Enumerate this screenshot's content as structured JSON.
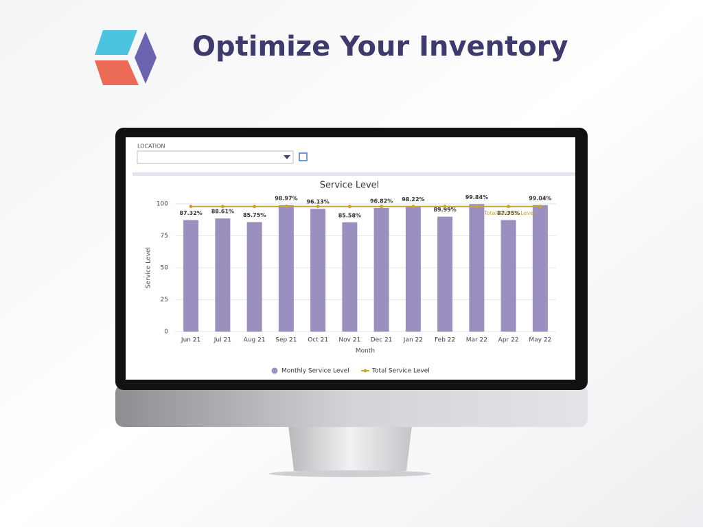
{
  "header": {
    "title": "Optimize Your Inventory"
  },
  "filter": {
    "label": "LOCATION"
  },
  "chart_data": {
    "type": "bar",
    "title": "Service Level",
    "x_label": "Month",
    "y_label": "Service Level",
    "categories": [
      "Jun 21",
      "Jul 21",
      "Aug 21",
      "Sep 21",
      "Oct 21",
      "Nov 21",
      "Dec 21",
      "Jan 22",
      "Feb 22",
      "Mar 22",
      "Apr 22",
      "May 22"
    ],
    "series": [
      {
        "name": "Monthly Service Level",
        "color": "#9b8fc0",
        "type": "bar",
        "values": [
          87.32,
          88.61,
          85.75,
          98.97,
          96.13,
          85.58,
          96.82,
          98.22,
          89.99,
          99.84,
          87.35,
          99.04
        ],
        "value_labels": [
          "87.32%",
          "88.61%",
          "85.75%",
          "98.97%",
          "96.13%",
          "85.58%",
          "96.82%",
          "98.22%",
          "89.99%",
          "99.84%",
          "87.35%",
          "99.04%"
        ]
      },
      {
        "name": "Total Service Level",
        "color": "#c9a433",
        "type": "line",
        "values": [
          98,
          98,
          98,
          98,
          98,
          98,
          98,
          98,
          98,
          98,
          98,
          98
        ]
      }
    ],
    "ylim": [
      0,
      100
    ],
    "yticks": [
      0,
      25,
      50,
      75,
      100
    ],
    "grid": true
  }
}
